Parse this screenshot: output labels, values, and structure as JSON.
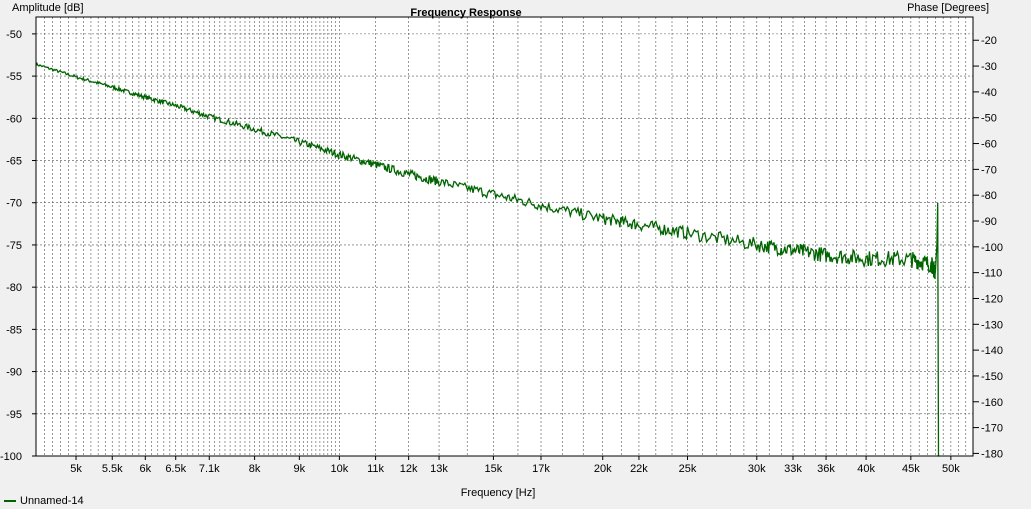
{
  "chart_data": {
    "type": "line",
    "title": "Frequency Response",
    "xlabel": "Frequency [Hz]",
    "ylabel": "Amplitude [dB]",
    "y2label": "Phase [Degrees]",
    "x_scale": "log",
    "xlim": [
      4500,
      53000
    ],
    "ylim": [
      -100,
      -48
    ],
    "y2lim": [
      -181,
      -11
    ],
    "grid": true,
    "legend_position": "bottom-left",
    "x_ticks": [
      5000,
      5500,
      6000,
      6500,
      7100,
      8000,
      9000,
      10000,
      11000,
      12000,
      13000,
      15000,
      17000,
      20000,
      22000,
      25000,
      30000,
      33000,
      36000,
      40000,
      45000,
      50000
    ],
    "x_tick_labels": [
      "5k",
      "5.5k",
      "6k",
      "6.5k",
      "7.1k",
      "8k",
      "9k",
      "10k",
      "11k",
      "12k",
      "13k",
      "15k",
      "17k",
      "20k",
      "22k",
      "25k",
      "30k",
      "33k",
      "36k",
      "40k",
      "45k",
      "50k"
    ],
    "y_ticks": [
      -50,
      -55,
      -60,
      -65,
      -70,
      -75,
      -80,
      -85,
      -90,
      -95,
      -100
    ],
    "y_tick_labels": [
      "-50",
      "-55",
      "-60",
      "-65",
      "-70",
      "-75",
      "-80",
      "-85",
      "-90",
      "-95",
      "-100"
    ],
    "y2_ticks": [
      -20,
      -30,
      -40,
      -50,
      -60,
      -70,
      -80,
      -90,
      -100,
      -110,
      -120,
      -130,
      -140,
      -150,
      -160,
      -170,
      -180
    ],
    "y2_tick_labels": [
      "-20",
      "-30",
      "-40",
      "-50",
      "-60",
      "-70",
      "-80",
      "-90",
      "-100",
      "-110",
      "-120",
      "-130",
      "-140",
      "-150",
      "-160",
      "-170",
      "-180"
    ],
    "series": [
      {
        "name": "Unnamed-14",
        "color": "#006400",
        "x": [
          4500,
          5000,
          5500,
          6000,
          6500,
          7100,
          8000,
          9000,
          10000,
          11000,
          12000,
          13000,
          15000,
          17000,
          20000,
          22000,
          25000,
          30000,
          33000,
          36000,
          40000,
          45000,
          47500,
          48000,
          48200,
          48300,
          48400,
          48500
        ],
        "y": [
          -53.6,
          -55.1,
          -56.3,
          -57.5,
          -58.5,
          -59.8,
          -61.3,
          -62.8,
          -64.3,
          -65.5,
          -66.6,
          -67.5,
          -69.0,
          -70.3,
          -71.9,
          -72.6,
          -73.6,
          -75.0,
          -75.6,
          -76.2,
          -76.6,
          -76.7,
          -77.3,
          -78.2,
          -75.0,
          -70.0,
          -100.0,
          -100.0
        ]
      }
    ]
  }
}
